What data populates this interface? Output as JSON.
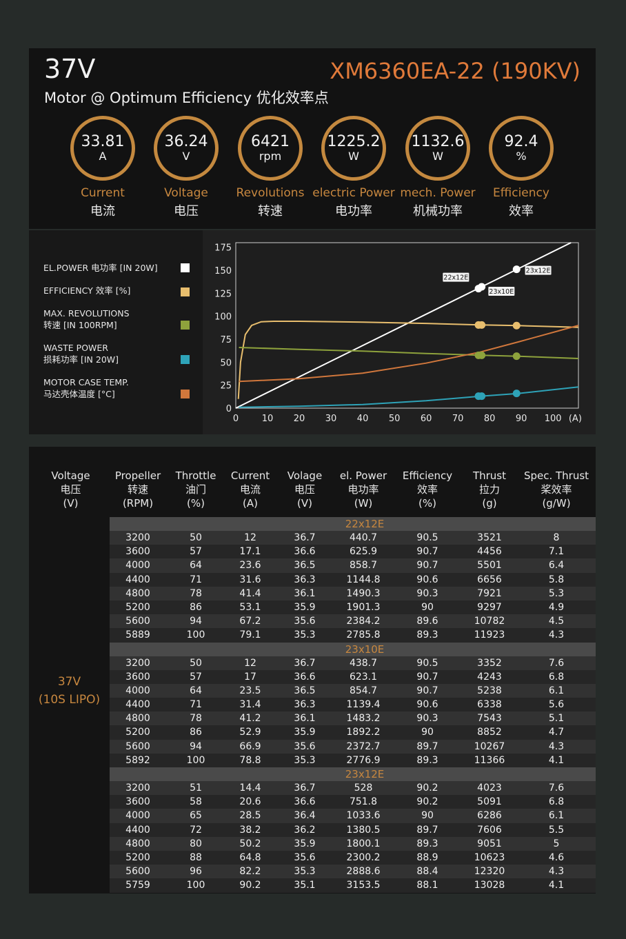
{
  "header": {
    "voltage": "37V",
    "model": "XM6360EA-22 (190KV)",
    "subtitle": "Motor @ Optimum Efficiency  优化效率点"
  },
  "stats": [
    {
      "value": "33.81",
      "unit": "A",
      "label_en": "Current",
      "label_cn": "电流"
    },
    {
      "value": "36.24",
      "unit": "V",
      "label_en": "Voltage",
      "label_cn": "电压"
    },
    {
      "value": "6421",
      "unit": "rpm",
      "label_en": "Revolutions",
      "label_cn": "转速"
    },
    {
      "value": "1225.2",
      "unit": "W",
      "label_en": "electric Power",
      "label_cn": "电功率"
    },
    {
      "value": "1132.6",
      "unit": "W",
      "label_en": "mech. Power",
      "label_cn": "机械功率"
    },
    {
      "value": "92.4",
      "unit": "%",
      "label_en": "Efficiency",
      "label_cn": "效率"
    }
  ],
  "legend": [
    {
      "line1": "EL.POWER 电功率 [IN 20W]",
      "line2": "",
      "color": "#ffffff"
    },
    {
      "line1": "EFFICIENCY 效率 [%]",
      "line2": "",
      "color": "#e8be6e"
    },
    {
      "line1": "MAX. REVOLUTIONS",
      "line2": "转速 [IN 100RPM]",
      "color": "#8ea23c"
    },
    {
      "line1": "WASTE POWER",
      "line2": "损耗功率 [IN 20W]",
      "color": "#2ea3b8"
    },
    {
      "line1": "MOTOR CASE TEMP.",
      "line2": "马达壳体温度 [°C]",
      "color": "#d1773c"
    }
  ],
  "chart_data": {
    "type": "line",
    "xlim": [
      0,
      108
    ],
    "ylim": [
      0,
      180
    ],
    "x_ticks": [
      "0",
      "10",
      "20",
      "30",
      "40",
      "50",
      "60",
      "70",
      "80",
      "90",
      "100",
      "(A)"
    ],
    "y_ticks": [
      0,
      25,
      50,
      75,
      100,
      125,
      150,
      175
    ],
    "series": [
      {
        "name": "EL.POWER 电功率 [IN 20W]",
        "color": "#ffffff",
        "x": [
          0,
          108
        ],
        "y": [
          0,
          184
        ]
      },
      {
        "name": "EFFICIENCY 效率 [%]",
        "color": "#e8be6e",
        "x": [
          0.8,
          1.5,
          3,
          5,
          8,
          12,
          20,
          40,
          60,
          77,
          89,
          108
        ],
        "y": [
          10,
          50,
          80,
          90,
          94,
          94.5,
          94.5,
          93.5,
          92.2,
          90.5,
          89.8,
          88
        ]
      },
      {
        "name": "MAX. REVOLUTIONS 转速 [IN 100RPM]",
        "color": "#8ea23c",
        "x": [
          1,
          20,
          40,
          60,
          77,
          89,
          108
        ],
        "y": [
          66,
          64,
          62,
          59.5,
          57.5,
          56.5,
          54
        ]
      },
      {
        "name": "WASTE POWER 损耗功率 [IN 20W]",
        "color": "#2ea3b8",
        "x": [
          1,
          20,
          40,
          60,
          77,
          89,
          108
        ],
        "y": [
          1,
          2,
          4,
          8,
          13,
          16,
          23
        ]
      },
      {
        "name": "MOTOR CASE TEMP. 马达壳体温度 [°C]",
        "color": "#d1773c",
        "x": [
          1,
          20,
          40,
          60,
          77,
          89,
          108
        ],
        "y": [
          29,
          32,
          38,
          49,
          61,
          72,
          90
        ]
      }
    ],
    "markers": [
      {
        "x": 76.5,
        "values": [
          130,
          90.5,
          57.5,
          13
        ]
      },
      {
        "x": 77.5,
        "values": [
          132,
          90.5,
          57.5,
          13
        ]
      },
      {
        "x": 88.5,
        "values": [
          151,
          89.8,
          56.5,
          16
        ]
      }
    ],
    "annotations": [
      {
        "text": "22x12E",
        "x": 77
      },
      {
        "text": "23x10E",
        "x": 77
      },
      {
        "text": "23x12E",
        "x": 89
      }
    ]
  },
  "table": {
    "voltage_col": {
      "l1": "Voltage",
      "l2": "电压",
      "l3": "(V)"
    },
    "headers": [
      {
        "l1": "Propeller",
        "l2": "转速",
        "l3": "(RPM)"
      },
      {
        "l1": "Throttle",
        "l2": "油门",
        "l3": "(%)"
      },
      {
        "l1": "Current",
        "l2": "电流",
        "l3": "(A)"
      },
      {
        "l1": "Volage",
        "l2": "电压",
        "l3": "(V)"
      },
      {
        "l1": "el. Power",
        "l2": "电功率",
        "l3": "(W)"
      },
      {
        "l1": "Efficiency",
        "l2": "效率",
        "l3": "(%)"
      },
      {
        "l1": "Thrust",
        "l2": "拉力",
        "l3": "(g)"
      },
      {
        "l1": "Spec. Thrust",
        "l2": "桨效率",
        "l3": "(g/W)"
      }
    ],
    "voltage_value": {
      "l1": "37V",
      "l2": "(10S LIPO)"
    },
    "groups": [
      {
        "name": "22x12E",
        "rows": [
          [
            "3200",
            "50",
            "12",
            "36.7",
            "440.7",
            "90.5",
            "3521",
            "8"
          ],
          [
            "3600",
            "57",
            "17.1",
            "36.6",
            "625.9",
            "90.7",
            "4456",
            "7.1"
          ],
          [
            "4000",
            "64",
            "23.6",
            "36.5",
            "858.7",
            "90.7",
            "5501",
            "6.4"
          ],
          [
            "4400",
            "71",
            "31.6",
            "36.3",
            "1144.8",
            "90.6",
            "6656",
            "5.8"
          ],
          [
            "4800",
            "78",
            "41.4",
            "36.1",
            "1490.3",
            "90.3",
            "7921",
            "5.3"
          ],
          [
            "5200",
            "86",
            "53.1",
            "35.9",
            "1901.3",
            "90",
            "9297",
            "4.9"
          ],
          [
            "5600",
            "94",
            "67.2",
            "35.6",
            "2384.2",
            "89.6",
            "10782",
            "4.5"
          ],
          [
            "5889",
            "100",
            "79.1",
            "35.3",
            "2785.8",
            "89.3",
            "11923",
            "4.3"
          ]
        ]
      },
      {
        "name": "23x10E",
        "rows": [
          [
            "3200",
            "50",
            "12",
            "36.7",
            "438.7",
            "90.5",
            "3352",
            "7.6"
          ],
          [
            "3600",
            "57",
            "17",
            "36.6",
            "623.1",
            "90.7",
            "4243",
            "6.8"
          ],
          [
            "4000",
            "64",
            "23.5",
            "36.5",
            "854.7",
            "90.7",
            "5238",
            "6.1"
          ],
          [
            "4400",
            "71",
            "31.4",
            "36.3",
            "1139.4",
            "90.6",
            "6338",
            "5.6"
          ],
          [
            "4800",
            "78",
            "41.2",
            "36.1",
            "1483.2",
            "90.3",
            "7543",
            "5.1"
          ],
          [
            "5200",
            "86",
            "52.9",
            "35.9",
            "1892.2",
            "90",
            "8852",
            "4.7"
          ],
          [
            "5600",
            "94",
            "66.9",
            "35.6",
            "2372.7",
            "89.7",
            "10267",
            "4.3"
          ],
          [
            "5892",
            "100",
            "78.8",
            "35.3",
            "2776.9",
            "89.3",
            "11366",
            "4.1"
          ]
        ]
      },
      {
        "name": "23x12E",
        "rows": [
          [
            "3200",
            "51",
            "14.4",
            "36.7",
            "528",
            "90.2",
            "4023",
            "7.6"
          ],
          [
            "3600",
            "58",
            "20.6",
            "36.6",
            "751.8",
            "90.2",
            "5091",
            "6.8"
          ],
          [
            "4000",
            "65",
            "28.5",
            "36.4",
            "1033.6",
            "90",
            "6286",
            "6.1"
          ],
          [
            "4400",
            "72",
            "38.2",
            "36.2",
            "1380.5",
            "89.7",
            "7606",
            "5.5"
          ],
          [
            "4800",
            "80",
            "50.2",
            "35.9",
            "1800.1",
            "89.3",
            "9051",
            "5"
          ],
          [
            "5200",
            "88",
            "64.8",
            "35.6",
            "2300.2",
            "88.9",
            "10623",
            "4.6"
          ],
          [
            "5600",
            "96",
            "82.2",
            "35.3",
            "2888.6",
            "88.4",
            "12320",
            "4.3"
          ],
          [
            "5759",
            "100",
            "90.2",
            "35.1",
            "3153.5",
            "88.1",
            "13028",
            "4.1"
          ]
        ]
      }
    ]
  }
}
